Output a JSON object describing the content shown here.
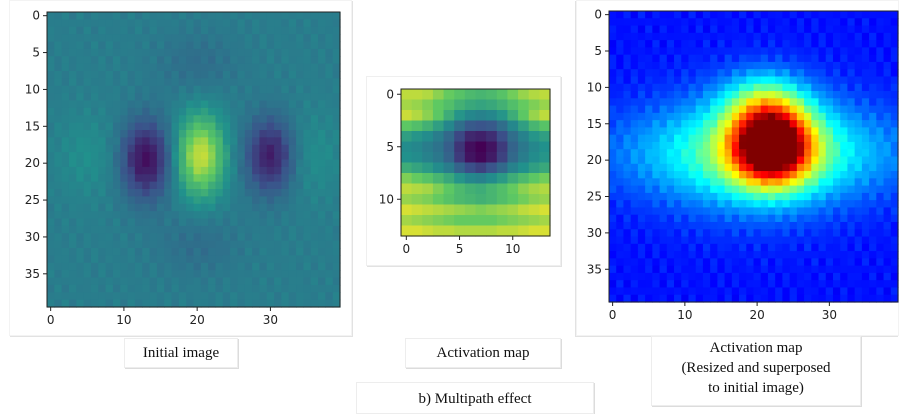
{
  "captions": {
    "initial_image": "Initial image",
    "activation_map": "Activation map",
    "activation_map_resized": "Activation map\n(Resized and superposed\nto initial image)",
    "subfigure": "b) Multipath effect"
  },
  "chart_data": [
    {
      "type": "heatmap",
      "colormap": "viridis",
      "shape": [
        40,
        40
      ],
      "grid": false,
      "xticks": [
        0,
        10,
        20,
        30
      ],
      "yticks": [
        0,
        5,
        10,
        15,
        20,
        25,
        30,
        35
      ],
      "value_range": [
        0,
        1
      ],
      "baseline": 0.42,
      "blobs": [
        {
          "x": 13,
          "y": 19.5,
          "sx": 2.3,
          "sy": 3.6,
          "amp": -0.38
        },
        {
          "x": 20.5,
          "y": 19,
          "sx": 2.2,
          "sy": 3.7,
          "amp": 0.5
        },
        {
          "x": 30,
          "y": 19,
          "sx": 2.3,
          "sy": 3.5,
          "amp": -0.34
        },
        {
          "x": 5,
          "y": 19,
          "sx": 3,
          "sy": 4,
          "amp": 0.07
        },
        {
          "x": 35.5,
          "y": 19,
          "sx": 3,
          "sy": 4,
          "amp": 0.07
        },
        {
          "x": 20,
          "y": 6.5,
          "sx": 4,
          "sy": 3,
          "amp": -0.06
        },
        {
          "x": 20,
          "y": 31,
          "sx": 4,
          "sy": 3,
          "amp": -0.06
        }
      ]
    },
    {
      "type": "heatmap",
      "colormap": "viridis",
      "shape": [
        14,
        14
      ],
      "grid": false,
      "xticks": [
        0,
        5,
        10
      ],
      "yticks": [
        0,
        5,
        10
      ],
      "rows": [
        [
          0.9,
          0.9,
          0.88,
          0.82,
          0.76,
          0.72,
          0.68,
          0.66,
          0.68,
          0.72,
          0.78,
          0.84,
          0.88,
          0.9
        ],
        [
          0.86,
          0.84,
          0.8,
          0.75,
          0.7,
          0.64,
          0.6,
          0.58,
          0.6,
          0.64,
          0.7,
          0.76,
          0.8,
          0.84
        ],
        [
          0.92,
          0.88,
          0.82,
          0.74,
          0.62,
          0.52,
          0.46,
          0.44,
          0.46,
          0.52,
          0.62,
          0.74,
          0.84,
          0.9
        ],
        [
          0.74,
          0.7,
          0.64,
          0.56,
          0.46,
          0.36,
          0.28,
          0.26,
          0.28,
          0.36,
          0.46,
          0.56,
          0.66,
          0.72
        ],
        [
          0.56,
          0.52,
          0.48,
          0.42,
          0.34,
          0.22,
          0.12,
          0.1,
          0.14,
          0.24,
          0.36,
          0.44,
          0.52,
          0.56
        ],
        [
          0.48,
          0.46,
          0.42,
          0.38,
          0.3,
          0.16,
          0.04,
          0.0,
          0.06,
          0.18,
          0.32,
          0.4,
          0.46,
          0.5
        ],
        [
          0.5,
          0.48,
          0.44,
          0.4,
          0.32,
          0.18,
          0.06,
          0.02,
          0.08,
          0.2,
          0.34,
          0.42,
          0.48,
          0.52
        ],
        [
          0.62,
          0.58,
          0.54,
          0.48,
          0.42,
          0.32,
          0.24,
          0.2,
          0.26,
          0.34,
          0.44,
          0.5,
          0.56,
          0.6
        ],
        [
          0.8,
          0.76,
          0.72,
          0.66,
          0.6,
          0.52,
          0.46,
          0.44,
          0.48,
          0.54,
          0.62,
          0.68,
          0.74,
          0.78
        ],
        [
          0.9,
          0.88,
          0.86,
          0.8,
          0.74,
          0.68,
          0.64,
          0.62,
          0.66,
          0.7,
          0.76,
          0.82,
          0.86,
          0.88
        ],
        [
          0.84,
          0.82,
          0.8,
          0.76,
          0.72,
          0.68,
          0.66,
          0.64,
          0.66,
          0.7,
          0.74,
          0.78,
          0.82,
          0.84
        ],
        [
          0.94,
          0.92,
          0.9,
          0.88,
          0.86,
          0.84,
          0.82,
          0.8,
          0.82,
          0.84,
          0.86,
          0.9,
          0.92,
          0.94
        ],
        [
          0.86,
          0.84,
          0.82,
          0.8,
          0.78,
          0.76,
          0.76,
          0.76,
          0.76,
          0.78,
          0.8,
          0.82,
          0.84,
          0.86
        ],
        [
          0.94,
          0.94,
          0.92,
          0.9,
          0.9,
          0.88,
          0.88,
          0.88,
          0.88,
          0.9,
          0.9,
          0.92,
          0.94,
          0.94
        ]
      ]
    },
    {
      "type": "heatmap",
      "colormap": "jet",
      "shape": [
        40,
        40
      ],
      "grid": false,
      "xticks": [
        0,
        10,
        20,
        30
      ],
      "yticks": [
        0,
        5,
        10,
        15,
        20,
        25,
        30,
        35
      ],
      "value_range": [
        0,
        1
      ],
      "baseline": 0.14,
      "blobs": [
        {
          "x": 22,
          "y": 18,
          "sx": 3.8,
          "sy": 3.6,
          "amp": 0.82
        },
        {
          "x": 21,
          "y": 12,
          "sx": 4,
          "sy": 3,
          "amp": 0.22
        },
        {
          "x": 21,
          "y": 19,
          "sx": 15,
          "sy": 4.5,
          "amp": 0.2
        },
        {
          "x": 20,
          "y": 19,
          "sx": 9,
          "sy": 6,
          "amp": 0.18
        }
      ]
    }
  ]
}
